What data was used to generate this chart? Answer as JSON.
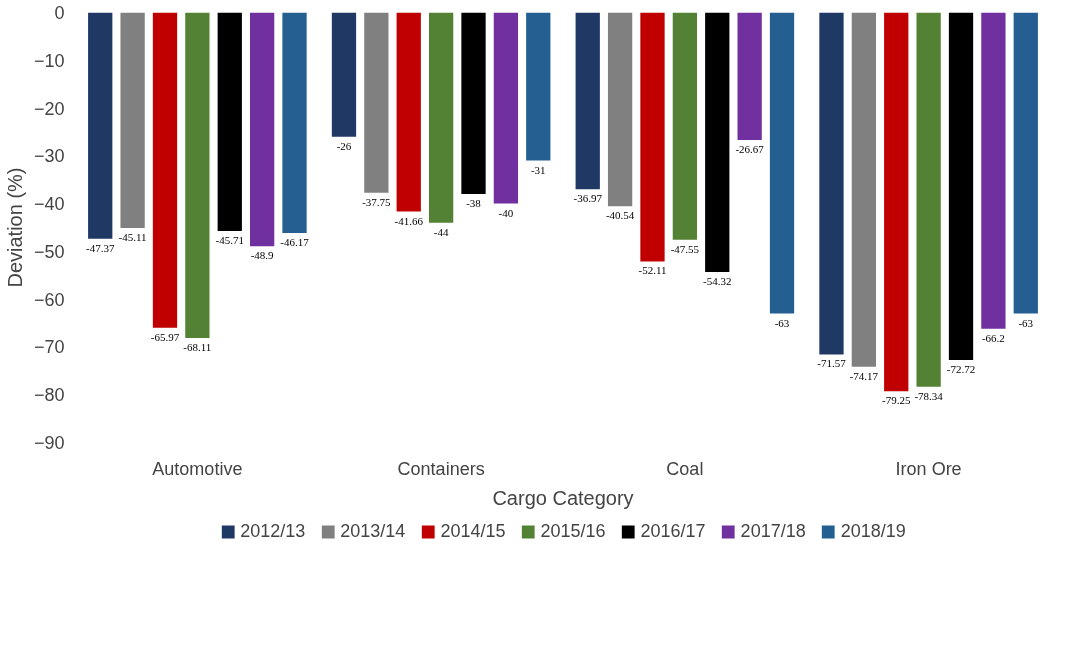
{
  "chart_data": {
    "type": "bar",
    "xlabel": "Cargo Category",
    "ylabel": "Deviation (%)",
    "categories": [
      "Automotive",
      "Containers",
      "Coal",
      "Iron Ore"
    ],
    "series": [
      {
        "name": "2012/13",
        "color": "#1f3864",
        "values": [
          -47.37,
          -26,
          -36.97,
          -71.57
        ]
      },
      {
        "name": "2013/14",
        "color": "#808080",
        "values": [
          -45.11,
          -37.75,
          -40.54,
          -74.17
        ]
      },
      {
        "name": "2014/15",
        "color": "#c00000",
        "values": [
          -65.97,
          -41.66,
          -52.11,
          -79.25
        ]
      },
      {
        "name": "2015/16",
        "color": "#548235",
        "values": [
          -68.11,
          -44,
          -47.55,
          -78.34
        ]
      },
      {
        "name": "2016/17",
        "color": "#000000",
        "values": [
          -45.71,
          -38,
          -54.32,
          -72.72
        ]
      },
      {
        "name": "2017/18",
        "color": "#7030a0",
        "values": [
          -48.9,
          -40,
          -26.67,
          -66.2
        ]
      },
      {
        "name": "2018/19",
        "color": "#255e91",
        "values": [
          -46.17,
          -31,
          -63,
          -63
        ]
      }
    ],
    "ylim": [
      -90,
      0
    ],
    "yticks": [
      0,
      -10,
      -20,
      -30,
      -40,
      -50,
      -60,
      -70,
      -80,
      -90
    ],
    "grid": false,
    "legend": "bottom",
    "data_labels": true
  }
}
